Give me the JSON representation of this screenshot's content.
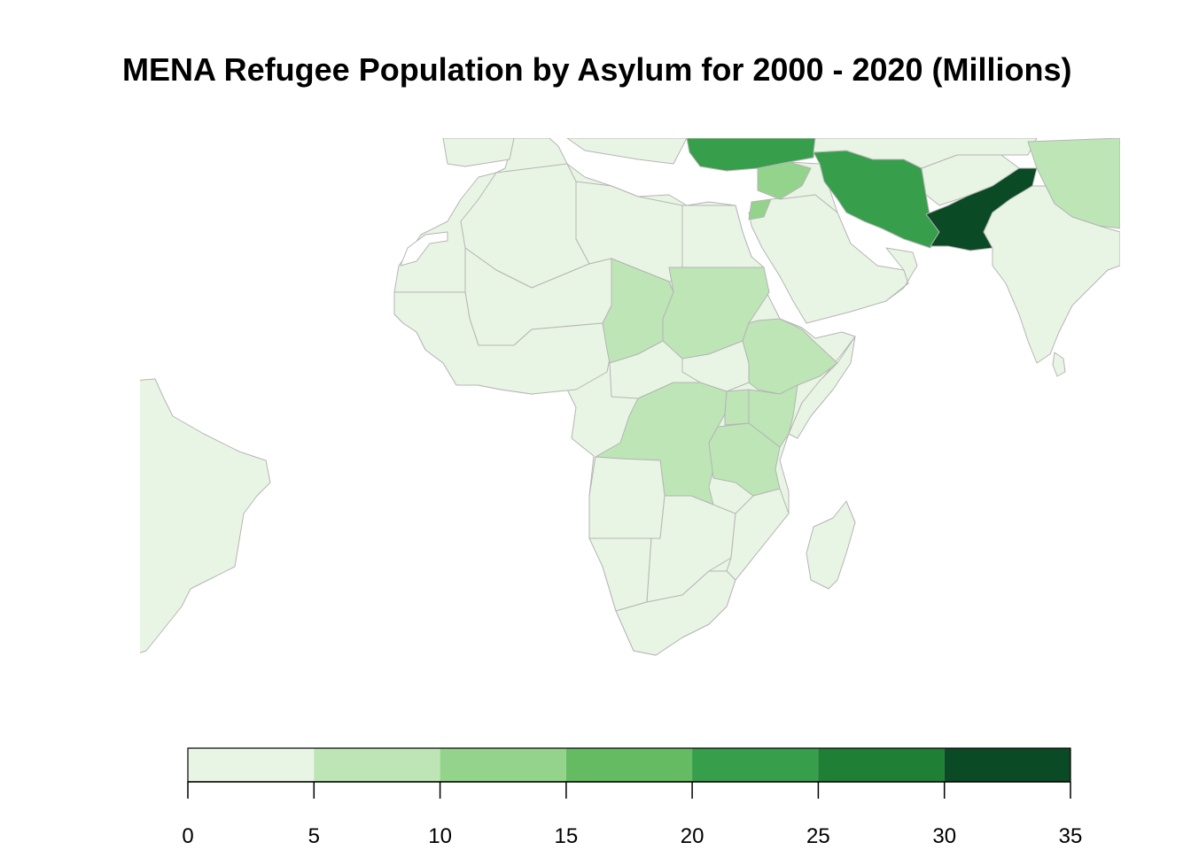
{
  "title": "MENA Refugee Population by Asylum for 2000 - 2020 (Millions)",
  "legend": {
    "breaks": [
      0,
      5,
      10,
      15,
      20,
      25,
      30,
      35
    ],
    "tick_labels": [
      "0",
      "5",
      "10",
      "15",
      "20",
      "25",
      "30",
      "35"
    ],
    "colors": [
      "#e9f5e4",
      "#bde5b6",
      "#94d38b",
      "#64bb62",
      "#379e4c",
      "#1e7f35",
      "#0a4a24"
    ]
  },
  "map": {
    "countries": [
      {
        "name": "Pakistan",
        "bin": 6
      },
      {
        "name": "Iran",
        "bin": 4
      },
      {
        "name": "Turkey",
        "bin": 4
      },
      {
        "name": "Lebanon",
        "bin": 2
      },
      {
        "name": "Jordan",
        "bin": 2
      },
      {
        "name": "Syria",
        "bin": 2
      },
      {
        "name": "China",
        "bin": 1
      },
      {
        "name": "Sudan",
        "bin": 1
      },
      {
        "name": "Chad",
        "bin": 1
      },
      {
        "name": "Ethiopia",
        "bin": 1
      },
      {
        "name": "DR Congo",
        "bin": 1
      },
      {
        "name": "Uganda",
        "bin": 1
      },
      {
        "name": "Tanzania",
        "bin": 1
      },
      {
        "name": "Kenya",
        "bin": 1
      },
      {
        "name": "Rwanda",
        "bin": 1
      }
    ]
  }
}
